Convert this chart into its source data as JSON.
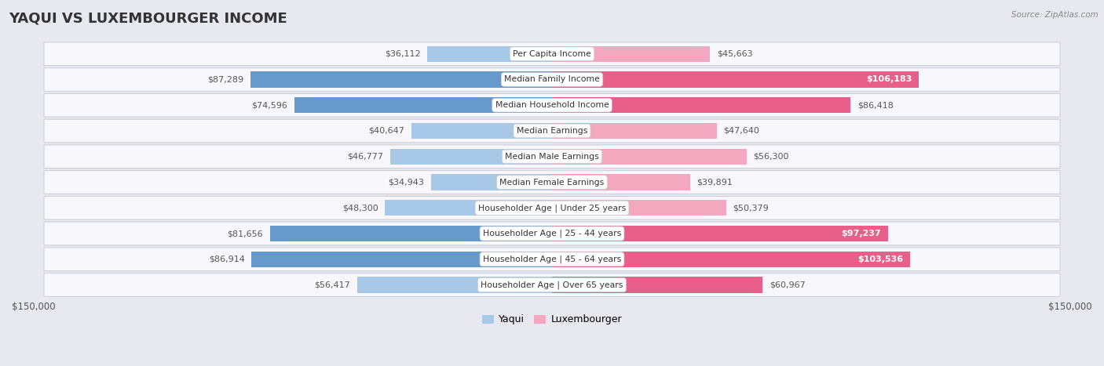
{
  "title": "YAQUI VS LUXEMBOURGER INCOME",
  "source": "Source: ZipAtlas.com",
  "categories": [
    "Per Capita Income",
    "Median Family Income",
    "Median Household Income",
    "Median Earnings",
    "Median Male Earnings",
    "Median Female Earnings",
    "Householder Age | Under 25 years",
    "Householder Age | 25 - 44 years",
    "Householder Age | 45 - 64 years",
    "Householder Age | Over 65 years"
  ],
  "yaqui_values": [
    36112,
    87289,
    74596,
    40647,
    46777,
    34943,
    48300,
    81656,
    86914,
    56417
  ],
  "luxembourger_values": [
    45663,
    106183,
    86418,
    47640,
    56300,
    39891,
    50379,
    97237,
    103536,
    60967
  ],
  "yaqui_labels": [
    "$36,112",
    "$87,289",
    "$74,596",
    "$40,647",
    "$46,777",
    "$34,943",
    "$48,300",
    "$81,656",
    "$86,914",
    "$56,417"
  ],
  "luxembourger_labels": [
    "$45,663",
    "$106,183",
    "$86,418",
    "$47,640",
    "$56,300",
    "$39,891",
    "$50,379",
    "$97,237",
    "$103,536",
    "$60,967"
  ],
  "yaqui_label_inside": [
    false,
    false,
    false,
    false,
    false,
    false,
    false,
    false,
    false,
    false
  ],
  "luxembourger_label_inside": [
    false,
    true,
    false,
    false,
    false,
    false,
    false,
    true,
    true,
    false
  ],
  "max_value": 150000,
  "yaqui_color_light": "#a8c8e8",
  "yaqui_color_dark": "#6699cc",
  "luxembourger_color_light": "#f4a8c0",
  "luxembourger_color_dark": "#e8608a",
  "background_color": "#e8e8f0",
  "row_bg_color": "#f8f8fc",
  "row_border_color": "#d0d0dc",
  "title_color": "#333333",
  "source_color": "#888888",
  "label_color_dark": "#555555",
  "title_fontsize": 13,
  "label_fontsize": 8,
  "cat_fontsize": 7.8,
  "legend_yaqui": "Yaqui",
  "legend_luxembourger": "Luxembourger"
}
